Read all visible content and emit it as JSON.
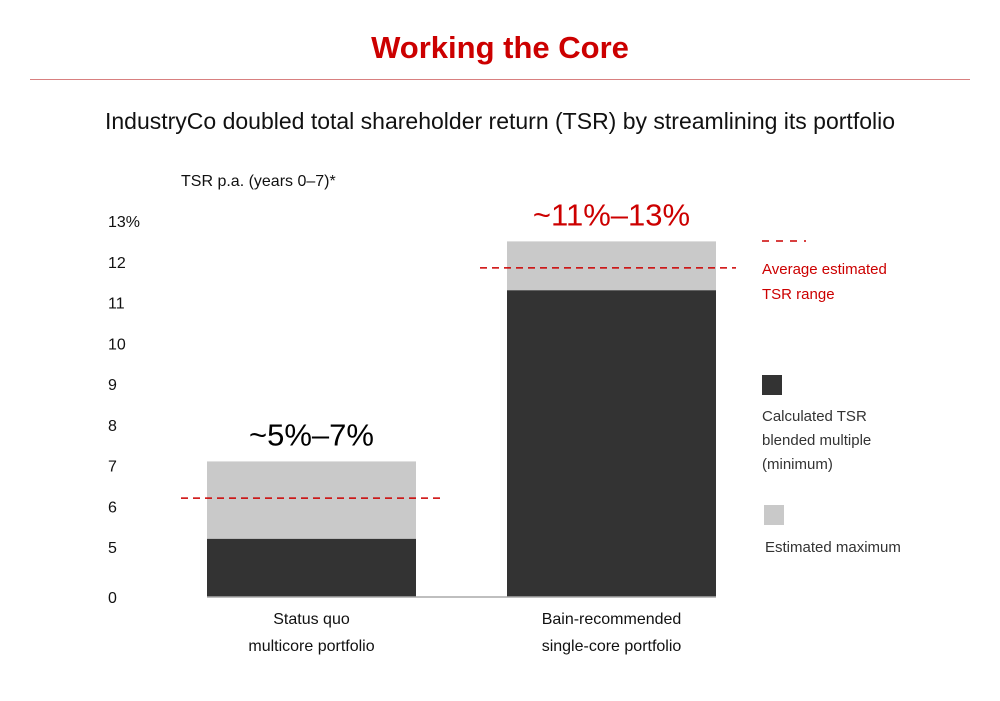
{
  "header": {
    "title": "Working the Core",
    "subtitle": "IndustryCo doubled total shareholder return (TSR) by streamlining its portfolio"
  },
  "colors": {
    "accent": "#cc0000",
    "calculated": "#333333",
    "maximum": "#c9c9c9",
    "baseline": "#aaaaaa"
  },
  "chart_data": {
    "type": "bar",
    "stacked": true,
    "ylabel": "TSR p.a. (years 0–7)*",
    "y_ticks": [
      "13%",
      "12",
      "11",
      "10",
      "9",
      "8",
      "7",
      "6",
      "5",
      "0"
    ],
    "y_tick_values": [
      13,
      12,
      11,
      10,
      9,
      8,
      7,
      6,
      5,
      0
    ],
    "axis_break": "between 0 and 5",
    "categories": [
      [
        "Status quo",
        "multicore portfolio"
      ],
      [
        "Bain-recommended",
        "single-core portfolio"
      ]
    ],
    "series": [
      {
        "name": "Calculated TSR blended multiple (minimum)",
        "values": [
          5.2,
          11.3
        ]
      },
      {
        "name": "Estimated maximum",
        "values": [
          7.1,
          12.5
        ]
      }
    ],
    "average": [
      6.2,
      11.85
    ],
    "range_labels": [
      "~5%–7%",
      "~11%–13%"
    ],
    "range_label_colors": [
      "#000000",
      "#cc0000"
    ],
    "legend": {
      "placement": "right",
      "average_label": [
        "Average estimated",
        "TSR range"
      ],
      "calculated_label": [
        "Calculated TSR",
        "blended multiple",
        "(minimum)"
      ],
      "maximum_label": "Estimated maximum"
    }
  }
}
